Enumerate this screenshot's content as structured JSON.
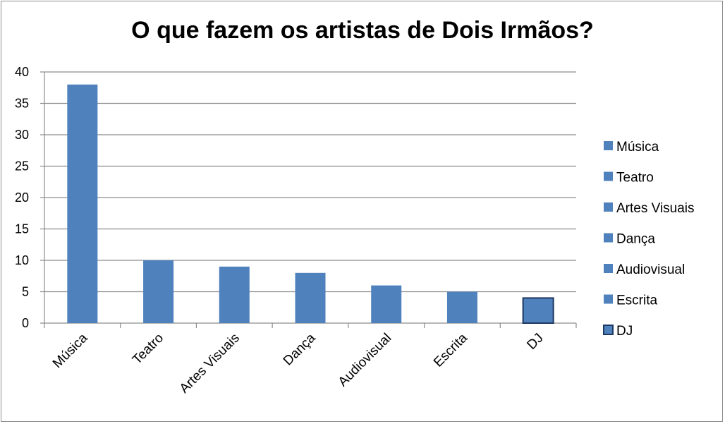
{
  "chart_data": {
    "type": "bar",
    "title": "O que fazem os artistas de Dois Irmãos?",
    "categories": [
      "Música",
      "Teatro",
      "Artes Visuais",
      "Dança",
      "Audiovisual",
      "Escrita",
      "DJ"
    ],
    "values": [
      38,
      10,
      9,
      8,
      6,
      5,
      4
    ],
    "ylim": [
      0,
      40
    ],
    "yticks": [
      0,
      5,
      10,
      15,
      20,
      25,
      30,
      35,
      40
    ],
    "grid": true,
    "legend_position": "right",
    "bar_color": "#4f81bd",
    "highlight_border_color": "#1f3864"
  }
}
